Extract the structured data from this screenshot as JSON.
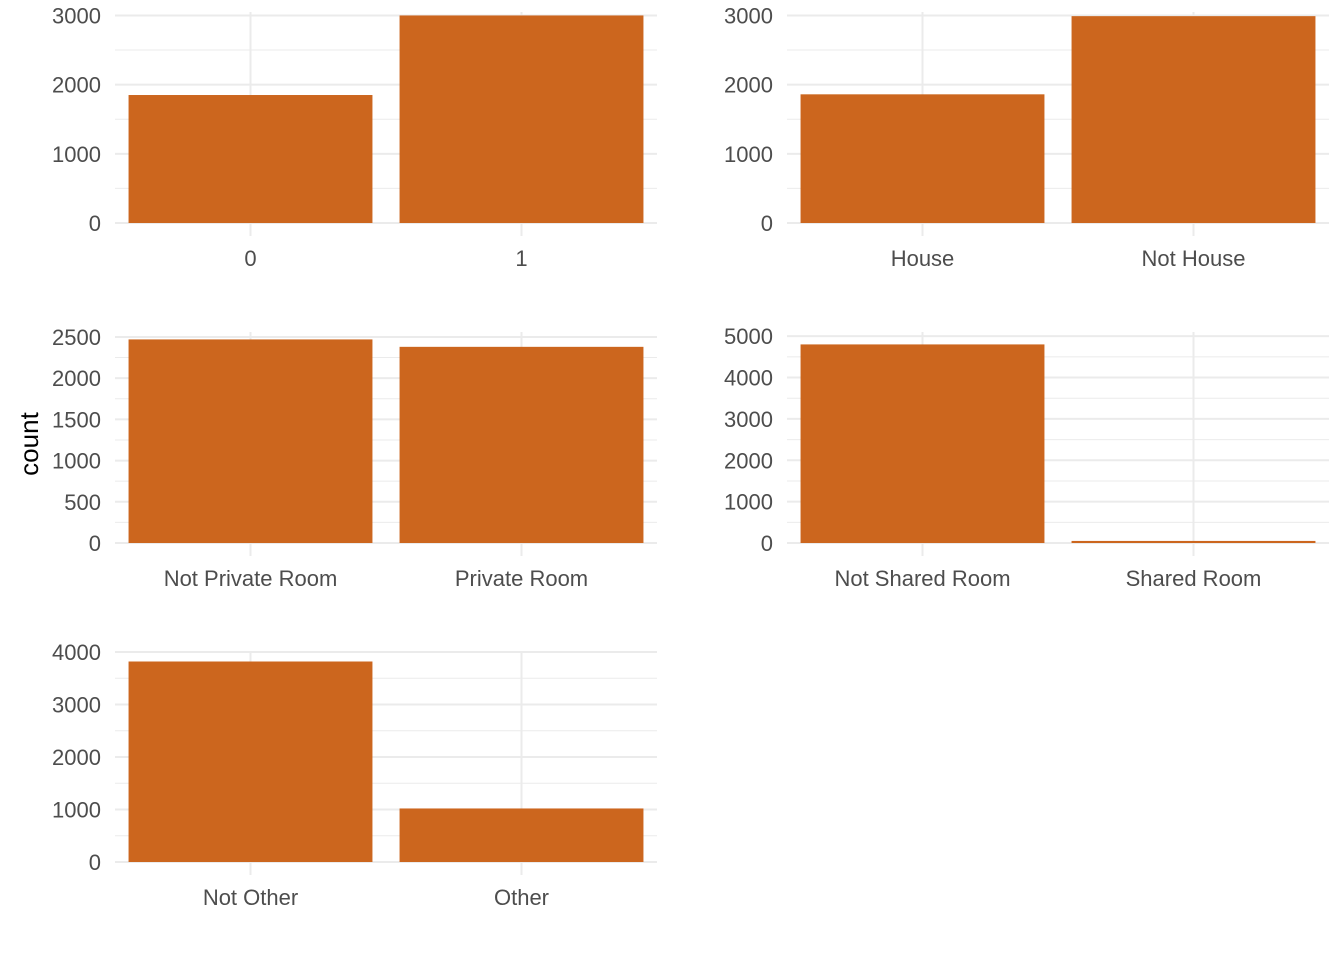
{
  "figure": {
    "ylabel": "count",
    "bar_color": "#CC661E",
    "grid_color": "#EBEBEB",
    "tick_label_color": "#4D4D4D",
    "background": "#FFFFFF"
  },
  "chart_data": [
    {
      "type": "bar",
      "categories": [
        "0",
        "1"
      ],
      "values": [
        1850,
        3000
      ],
      "ylim": [
        0,
        3050
      ],
      "yticks": [
        0,
        1000,
        2000,
        3000
      ],
      "grid": true
    },
    {
      "type": "bar",
      "categories": [
        "House",
        "Not House"
      ],
      "values": [
        1860,
        2990
      ],
      "ylim": [
        0,
        3050
      ],
      "yticks": [
        0,
        1000,
        2000,
        3000
      ],
      "grid": true
    },
    {
      "type": "bar",
      "categories": [
        "Not Private Room",
        "Private Room"
      ],
      "values": [
        2470,
        2380
      ],
      "ylim": [
        0,
        2560
      ],
      "yticks": [
        0,
        500,
        1000,
        1500,
        2000,
        2500
      ],
      "grid": true
    },
    {
      "type": "bar",
      "categories": [
        "Not Shared Room",
        "Shared Room"
      ],
      "values": [
        4800,
        50
      ],
      "ylim": [
        0,
        5100
      ],
      "yticks": [
        0,
        1000,
        2000,
        3000,
        4000,
        5000
      ],
      "grid": true
    },
    {
      "type": "bar",
      "categories": [
        "Not Other",
        "Other"
      ],
      "values": [
        3820,
        1020
      ],
      "ylim": [
        0,
        4020
      ],
      "yticks": [
        0,
        1000,
        2000,
        3000,
        4000
      ],
      "grid": true
    }
  ]
}
